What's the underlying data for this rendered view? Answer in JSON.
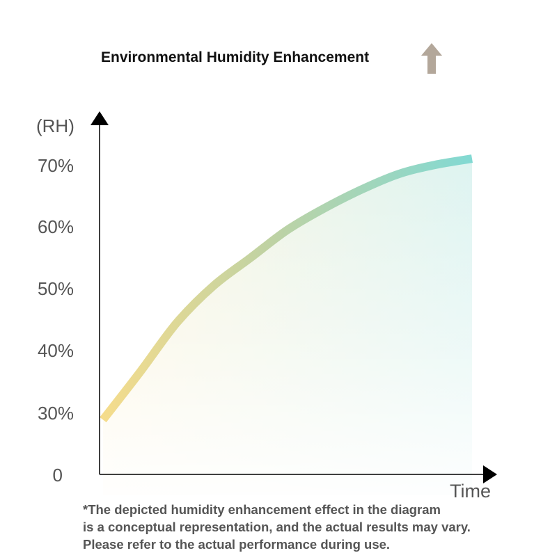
{
  "title": "Environmental Humidity Enhancement",
  "title_icon": "up-arrow-icon",
  "colors": {
    "curve_start": "#f5dc8c",
    "curve_end": "#82d9d3",
    "axis": "#000000",
    "up_arrow": "#b3a79a",
    "text": "#555555"
  },
  "chart_data": {
    "type": "area",
    "title": "Environmental Humidity Enhancement",
    "ylabel": "(RH)",
    "xlabel": "Time",
    "y_ticks": [
      "70%",
      "60%",
      "50%",
      "40%",
      "30%",
      "0"
    ],
    "y_tick_values": [
      70,
      60,
      50,
      40,
      30,
      0
    ],
    "ylim": [
      0,
      80
    ],
    "series": [
      {
        "x": [
          0,
          0.1,
          0.2,
          0.3,
          0.4,
          0.5,
          0.6,
          0.7,
          0.8,
          0.9,
          1.0
        ],
        "values": [
          26.5,
          36.5,
          44.5,
          50.5,
          55.0,
          59.5,
          63.0,
          66.0,
          68.5,
          70.0,
          71.0
        ]
      }
    ],
    "grid": false,
    "legend": "none"
  },
  "footnote": [
    "*The depicted humidity enhancement effect in the diagram",
    "is a conceptual representation, and the actual results may vary.",
    "Please refer to the actual performance during use."
  ]
}
